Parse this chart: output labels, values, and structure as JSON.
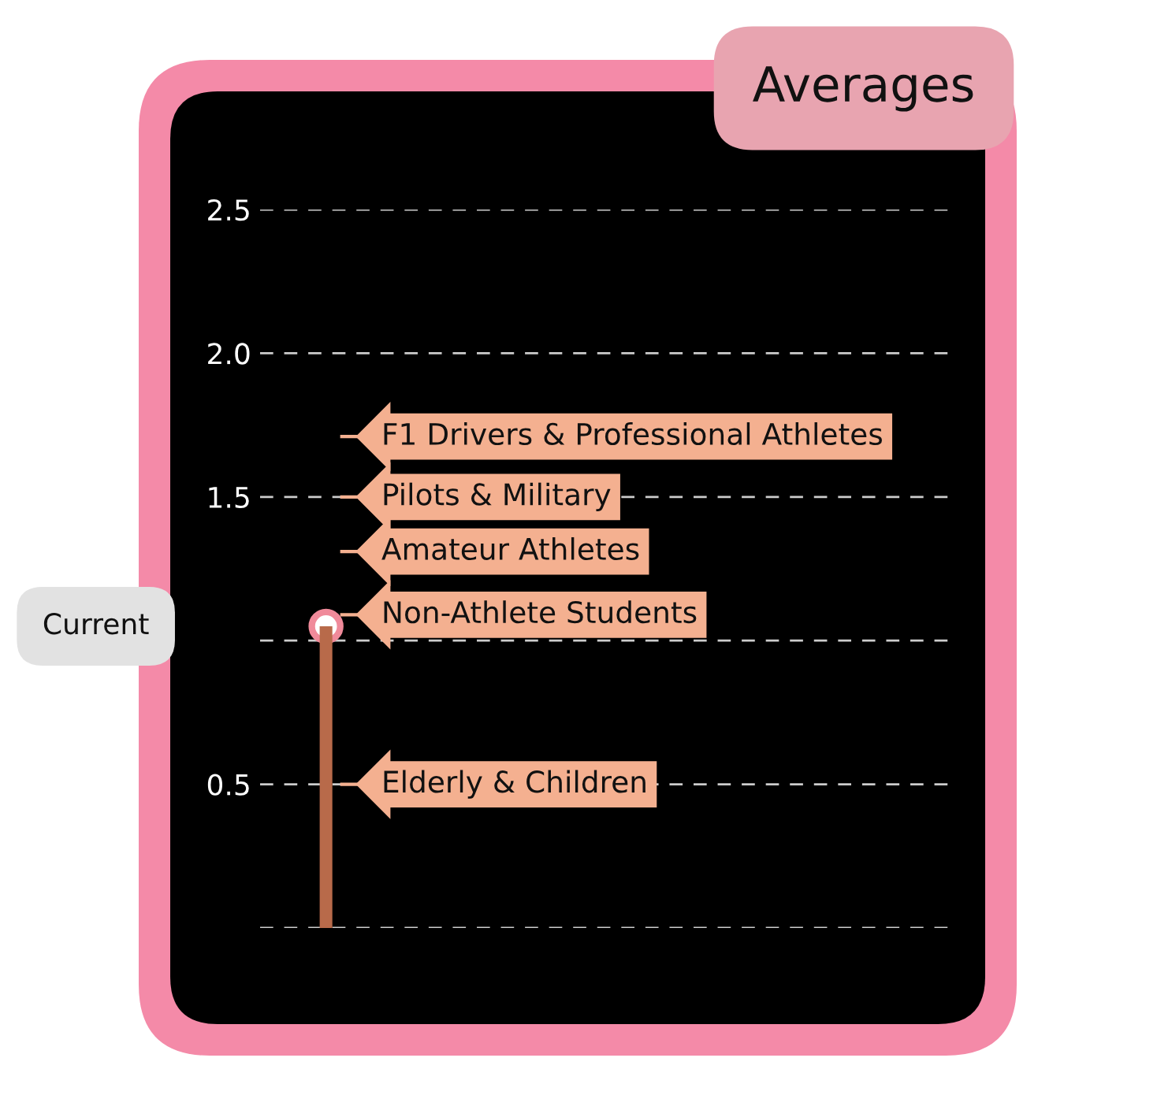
{
  "chart_data": {
    "type": "bar",
    "title": "Averages",
    "categories": [
      null
    ],
    "series": [
      {
        "color": "#b86a4a",
        "values": [
          1.05
        ]
      },
      {
        "type": "scatter",
        "color": "#ffffff",
        "values": [
          1.05
        ],
        "marker": "circle"
      }
    ],
    "ylim": [
      0,
      2.5
    ],
    "yticks": [
      {
        "value": 0,
        "label": null
      },
      0.5,
      {
        "value": 1.0,
        "label": null
      },
      1.5,
      {
        "value": 2.0,
        "label": "2.0"
      },
      2.5
    ],
    "grid": "y",
    "ref_lines": [
      {
        "axis": "y",
        "value": 1.71,
        "label": "F1 Drivers & Professional Athletes"
      },
      {
        "axis": "y",
        "value": 1.5,
        "label": "Pilots & Military"
      },
      {
        "axis": "y",
        "value": 1.31,
        "label": "Amateur Athletes"
      },
      {
        "axis": "y",
        "value": 1.09,
        "label": "Non-Athlete Students"
      },
      {
        "axis": "y",
        "value": 0.5,
        "label": "Elderly & Children"
      }
    ],
    "annotations": [
      "Current"
    ]
  }
}
